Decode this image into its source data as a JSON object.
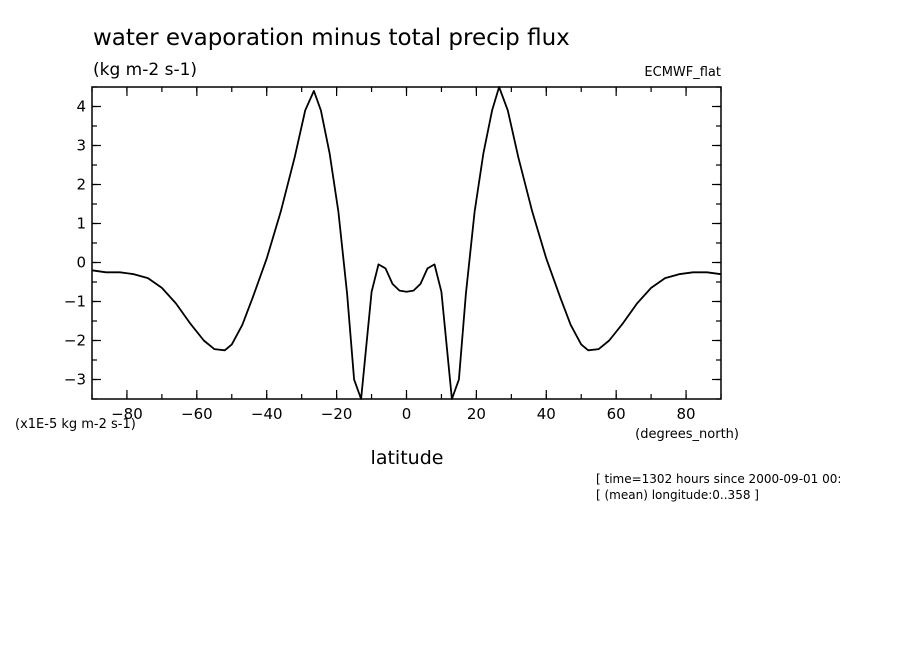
{
  "chart_data": {
    "type": "line",
    "title": "water evaporation minus total precip flux",
    "units": "(kg m-2 s-1)",
    "model": "ECMWF_flat",
    "xlabel": "latitude",
    "x_units": "(degrees_north)",
    "y_scale_label": "(x1E-5 kg m-2 s-1)",
    "xlim": [
      -90,
      90
    ],
    "ylim": [
      -3.5,
      4.5
    ],
    "x_ticks": [
      -80,
      -60,
      -40,
      -20,
      0,
      20,
      40,
      60,
      80
    ],
    "y_ticks": [
      -3,
      -2,
      -1,
      0,
      1,
      2,
      3,
      4
    ],
    "grid": false,
    "annotations": [
      "[ time=1302 hours since 2000-09-01 00:",
      "[ (mean) longitude:0..358 ]"
    ],
    "series": [
      {
        "x": [
          -90,
          -86,
          -82,
          -78,
          -74,
          -70,
          -66,
          -62,
          -58,
          -55,
          -52,
          -50,
          -47,
          -44,
          -40,
          -36,
          -32,
          -29,
          -26.5,
          -24.5,
          -22,
          -19.5,
          -17,
          -15,
          -13,
          -10,
          -8,
          -6,
          -4,
          -2,
          0,
          2,
          4,
          6,
          8,
          10,
          13,
          15,
          17,
          19.5,
          22,
          24.5,
          26.5,
          29,
          32,
          36,
          40,
          44,
          47,
          50,
          52,
          55,
          58,
          62,
          66,
          70,
          74,
          78,
          82,
          86,
          90
        ],
        "values": [
          -0.2,
          -0.25,
          -0.25,
          -0.3,
          -0.4,
          -0.65,
          -1.05,
          -1.55,
          -2.0,
          -2.22,
          -2.25,
          -2.1,
          -1.6,
          -0.9,
          0.1,
          1.3,
          2.7,
          3.9,
          4.4,
          3.9,
          2.8,
          1.3,
          -0.8,
          -3.0,
          -3.5,
          -0.75,
          -0.05,
          -0.15,
          -0.55,
          -0.72,
          -0.75,
          -0.72,
          -0.55,
          -0.15,
          -0.05,
          -0.75,
          -3.5,
          -3.0,
          -0.8,
          1.3,
          2.8,
          3.9,
          4.5,
          3.9,
          2.7,
          1.3,
          0.1,
          -0.9,
          -1.6,
          -2.1,
          -2.25,
          -2.22,
          -2.0,
          -1.55,
          -1.05,
          -0.65,
          -0.4,
          -0.3,
          -0.25,
          -0.25,
          -0.3
        ]
      }
    ]
  }
}
